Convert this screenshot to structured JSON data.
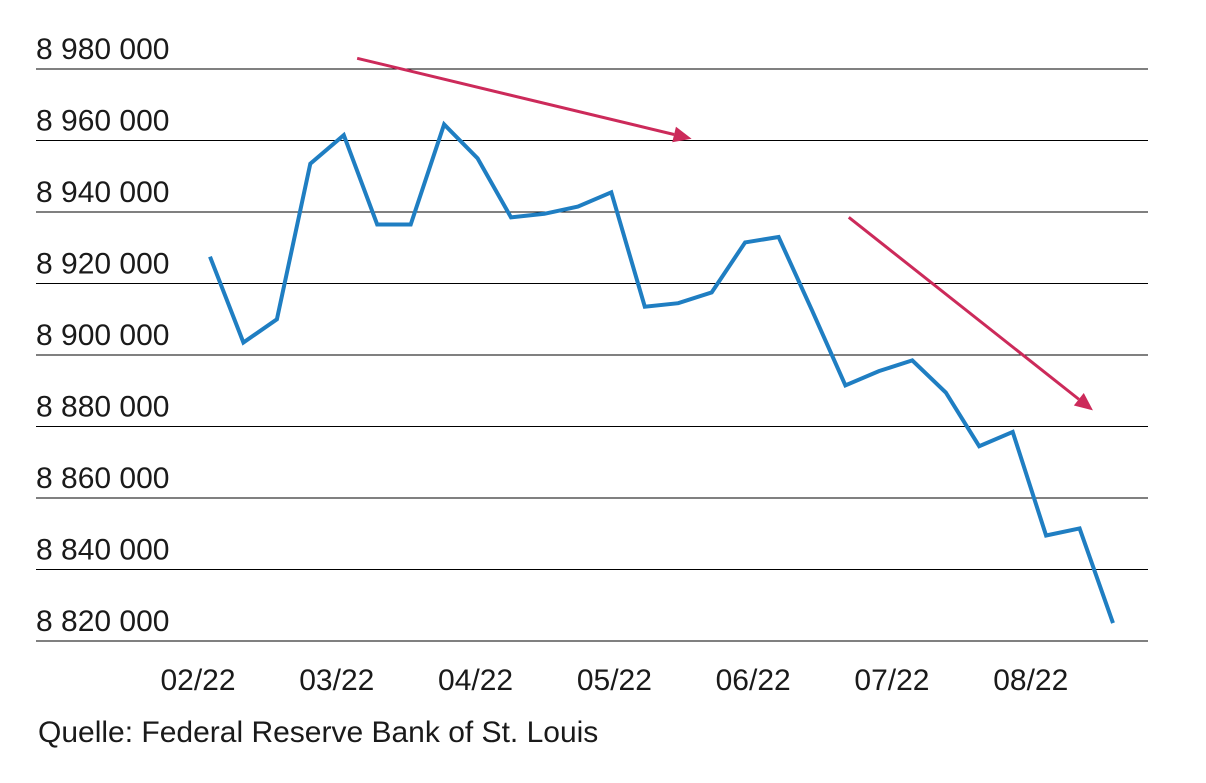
{
  "chart_data": {
    "type": "line",
    "x_tick_labels": [
      "02/22",
      "03/22",
      "04/22",
      "05/22",
      "06/22",
      "07/22",
      "08/22"
    ],
    "y_tick_labels": [
      "8 820 000",
      "8 840 000",
      "8 860 000",
      "8 880 000",
      "8 900 000",
      "8 920 000",
      "8 940 000",
      "8 960 000",
      "8 980 000"
    ],
    "y_ticks": [
      8820000,
      8840000,
      8860000,
      8880000,
      8900000,
      8920000,
      8940000,
      8960000,
      8980000
    ],
    "ylim": [
      8815000,
      8986000
    ],
    "grid": true,
    "legend": "none",
    "series": [
      {
        "values": [
          8927500,
          8903500,
          8910000,
          8953500,
          8961500,
          8936500,
          8936500,
          8964500,
          8955000,
          8938500,
          8939500,
          8941500,
          8945500,
          8913500,
          8914500,
          8917500,
          8931500,
          8933000,
          8912500,
          8891500,
          8895500,
          8898500,
          8889500,
          8874500,
          8878500,
          8849500,
          8851500,
          8825000
        ]
      }
    ],
    "annotations": [
      {
        "type": "trend-arrow",
        "from": {
          "x": 4.4,
          "y": 8983000
        },
        "to": {
          "x": 14.4,
          "y": 8960500
        }
      },
      {
        "type": "trend-arrow",
        "from": {
          "x": 19.1,
          "y": 8938500
        },
        "to": {
          "x": 26.4,
          "y": 8884500
        }
      }
    ],
    "colors": {
      "line": "#1f7ec2",
      "arrow": "#cc2a5a",
      "grid": "#000000",
      "text": "#1a1a1a"
    }
  },
  "source": "Quelle: Federal Reserve Bank of St. Louis"
}
